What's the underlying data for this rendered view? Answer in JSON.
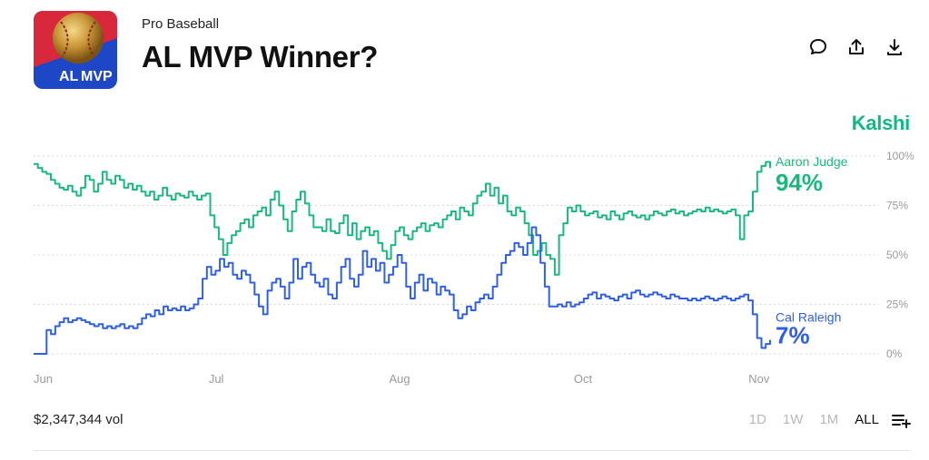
{
  "header": {
    "logo_text_al": "AL",
    "logo_text_mvp": "MVP",
    "category": "Pro Baseball",
    "title": "AL MVP Winner?"
  },
  "actions": [
    {
      "name": "comment-icon"
    },
    {
      "name": "share-icon"
    },
    {
      "name": "download-icon"
    }
  ],
  "brand": "Kalshi",
  "colors": {
    "judge": "#18b97c",
    "raleigh": "#2f5fe6",
    "grid": "#d8d8d8",
    "axis_text": "#9a9a9a",
    "brand": "#0fb884"
  },
  "chart_data": {
    "type": "line",
    "x_ticks": [
      "Jun",
      "Jul",
      "Aug",
      "Oct",
      "Nov"
    ],
    "y_ticks": [
      "100%",
      "75%",
      "50%",
      "25%",
      "0%"
    ],
    "ylim": [
      0,
      100
    ],
    "grid": true,
    "series": [
      {
        "name": "Aaron Judge",
        "current_label": "94%",
        "values": [
          96,
          94,
          92,
          91,
          88,
          86,
          84,
          83,
          85,
          82,
          80,
          84,
          90,
          88,
          82,
          86,
          92,
          88,
          86,
          90,
          88,
          84,
          86,
          83,
          85,
          82,
          80,
          82,
          78,
          80,
          84,
          80,
          78,
          81,
          80,
          79,
          82,
          80,
          78,
          80,
          81,
          70,
          64,
          58,
          50,
          56,
          60,
          62,
          66,
          68,
          64,
          70,
          72,
          74,
          70,
          78,
          82,
          75,
          68,
          62,
          72,
          78,
          82,
          76,
          70,
          64,
          64,
          62,
          68,
          62,
          61,
          66,
          70,
          60,
          66,
          58,
          62,
          64,
          60,
          62,
          56,
          52,
          48,
          55,
          62,
          64,
          60,
          58,
          62,
          64,
          66,
          62,
          65,
          66,
          64,
          68,
          70,
          72,
          68,
          74,
          72,
          70,
          76,
          80,
          82,
          86,
          80,
          84,
          76,
          80,
          72,
          70,
          74,
          72,
          66,
          60,
          50,
          52,
          56,
          50,
          48,
          40,
          60,
          66,
          74,
          72,
          75,
          72,
          70,
          71,
          72,
          69,
          70,
          68,
          72,
          70,
          68,
          71,
          72,
          70,
          69,
          70,
          68,
          70,
          72,
          71,
          70,
          72,
          73,
          71,
          72,
          70,
          71,
          72,
          73,
          72,
          74,
          72,
          73,
          72,
          71,
          72,
          73,
          70,
          58,
          70,
          72,
          82,
          92,
          95,
          97,
          94
        ]
      },
      {
        "name": "Cal Raleigh",
        "current_label": "7%",
        "values": [
          0,
          0,
          0,
          12,
          10,
          14,
          16,
          18,
          16,
          17,
          18,
          17,
          16,
          15,
          14,
          15,
          13,
          14,
          13,
          14,
          15,
          13,
          14,
          13,
          15,
          18,
          20,
          19,
          22,
          20,
          24,
          22,
          23,
          22,
          24,
          22,
          23,
          25,
          28,
          38,
          44,
          40,
          42,
          48,
          44,
          46,
          40,
          38,
          42,
          40,
          36,
          30,
          24,
          20,
          32,
          36,
          38,
          34,
          28,
          36,
          48,
          38,
          44,
          46,
          40,
          36,
          34,
          38,
          30,
          28,
          36,
          44,
          48,
          38,
          34,
          40,
          52,
          44,
          48,
          42,
          46,
          36,
          40,
          44,
          50,
          46,
          34,
          28,
          36,
          40,
          32,
          38,
          36,
          30,
          34,
          32,
          30,
          22,
          18,
          20,
          24,
          22,
          26,
          28,
          30,
          28,
          34,
          40,
          46,
          50,
          52,
          56,
          54,
          50,
          56,
          64,
          60,
          46,
          34,
          24,
          24,
          25,
          24,
          26,
          24,
          25,
          26,
          28,
          30,
          31,
          28,
          30,
          29,
          28,
          27,
          29,
          30,
          28,
          31,
          32,
          30,
          29,
          30,
          31,
          30,
          29,
          28,
          30,
          29,
          28,
          28,
          27,
          28,
          27,
          28,
          29,
          28,
          27,
          28,
          29,
          28,
          27,
          28,
          29,
          30,
          27,
          20,
          8,
          3,
          5,
          7
        ]
      }
    ]
  },
  "footer": {
    "volume": "$2,347,344 vol",
    "ranges": [
      {
        "label": "1D",
        "active": false
      },
      {
        "label": "1W",
        "active": false
      },
      {
        "label": "1M",
        "active": false
      },
      {
        "label": "ALL",
        "active": true
      }
    ]
  }
}
